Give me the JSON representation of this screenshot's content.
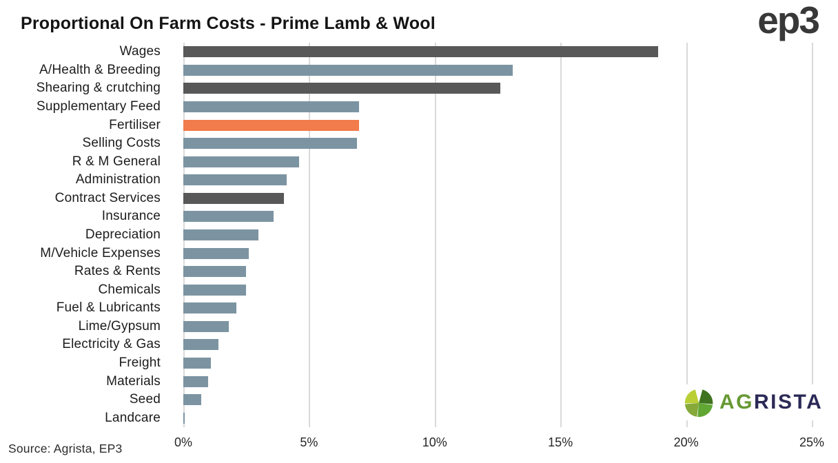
{
  "title": "Proportional On Farm Costs - Prime Lamb & Wool",
  "source_note": "Source: Agrista, EP3",
  "brand": {
    "ep3_logo_text": "ep3",
    "agrista_logo_ag": "AG",
    "agrista_logo_rista": "RISTA",
    "agrista_green": "#669933",
    "agrista_navy": "#2b2955",
    "agrista_leaf_colors": [
      "#b9cf35",
      "#3f731f",
      "#61a733",
      "#86a93a"
    ]
  },
  "colors": {
    "bar_default": "#7c94a2",
    "bar_dark": "#585858",
    "bar_accent": "#f27c4b",
    "gridline": "#d9d9d9",
    "text": "#1c1c1c"
  },
  "chart_data": {
    "type": "bar",
    "orientation": "horizontal",
    "title": "Proportional On Farm Costs - Prime Lamb & Wool",
    "xlabel": "",
    "ylabel": "",
    "xlim": [
      0,
      25
    ],
    "x_tick_labels": [
      "0%",
      "5%",
      "10%",
      "15%",
      "20%",
      "25%"
    ],
    "x_tick_values": [
      0,
      5,
      10,
      15,
      20,
      25
    ],
    "grid": "vertical",
    "legend": "none",
    "unit": "percent",
    "categories": [
      "Wages",
      "A/Health & Breeding",
      "Shearing & crutching",
      "Supplementary Feed",
      "Fertiliser",
      "Selling Costs",
      "R & M General",
      "Administration",
      "Contract Services",
      "Insurance",
      "Depreciation",
      "M/Vehicle Expenses",
      "Rates & Rents",
      "Chemicals",
      "Fuel & Lubricants",
      "Lime/Gypsum",
      "Electricity & Gas",
      "Freight",
      "Materials",
      "Seed",
      "Landcare"
    ],
    "values": [
      18.9,
      13.1,
      12.6,
      7.0,
      7.0,
      6.9,
      4.6,
      4.1,
      4.0,
      3.6,
      3.0,
      2.6,
      2.5,
      2.5,
      2.1,
      1.8,
      1.4,
      1.1,
      1.0,
      0.7,
      0.05
    ],
    "color_roles": [
      "dark",
      "default",
      "dark",
      "default",
      "accent",
      "default",
      "default",
      "default",
      "dark",
      "default",
      "default",
      "default",
      "default",
      "default",
      "default",
      "default",
      "default",
      "default",
      "default",
      "default",
      "default"
    ]
  }
}
